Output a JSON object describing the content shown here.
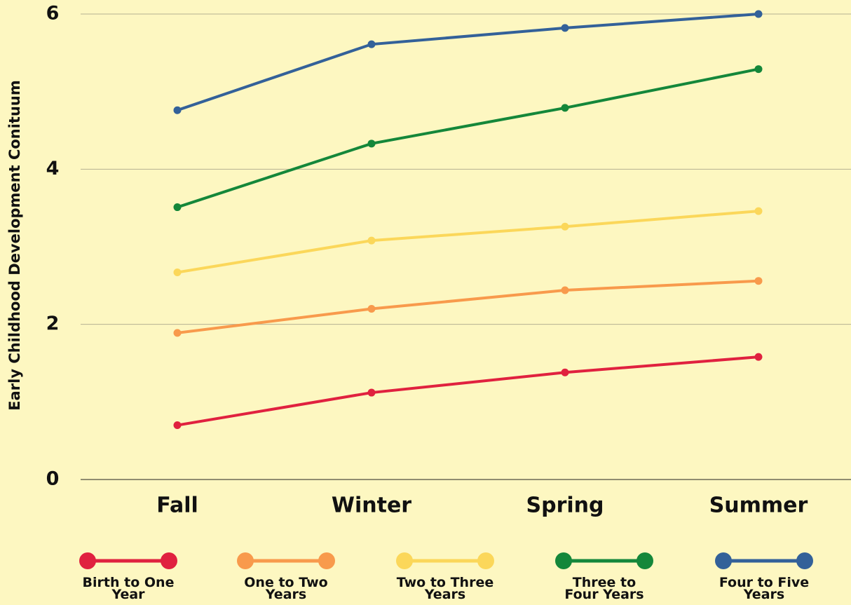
{
  "chart_data": {
    "type": "line",
    "y_label": "Early Childhood Development Conituum",
    "categories": [
      "Fall",
      "Winter",
      "Spring",
      "Summer"
    ],
    "series": [
      {
        "name": "Birth to One Year",
        "color": "#e0213f",
        "values": [
          0.7,
          1.12,
          1.38,
          1.58
        ]
      },
      {
        "name": "One to Two Years",
        "color": "#f89a4c",
        "values": [
          1.89,
          2.2,
          2.44,
          2.56
        ]
      },
      {
        "name": "Two to Three Years",
        "color": "#fbd75a",
        "values": [
          2.67,
          3.08,
          3.26,
          3.46
        ]
      },
      {
        "name": "Three to Four Years",
        "color": "#14873a",
        "values": [
          3.51,
          4.33,
          4.79,
          5.29
        ]
      },
      {
        "name": "Four to Five Years",
        "color": "#336199",
        "values": [
          4.76,
          5.61,
          5.82,
          6.0
        ]
      }
    ],
    "ylim": [
      0,
      6
    ],
    "yticks": [
      0,
      2,
      4,
      6
    ],
    "grid": true,
    "legend": "bottom"
  }
}
